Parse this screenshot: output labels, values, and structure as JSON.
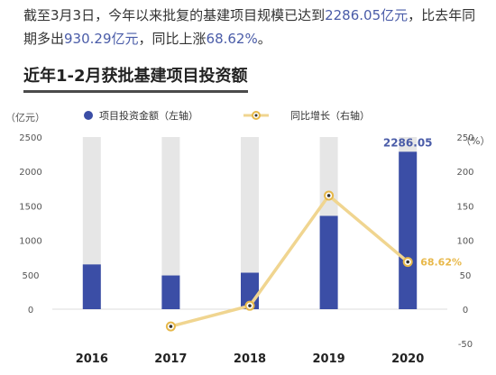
{
  "intro": {
    "part1": "截至3月3日，今年以来批复的基建项目规模已达到",
    "amount": "2286.05亿元",
    "part2": "，比去年同期多出",
    "increase": "930.29亿元",
    "part3": "，同比上涨",
    "pct": "68.62%",
    "part4": "。"
  },
  "heading": "近年1-2月获批基建项目投资额",
  "colors": {
    "bar": "#3b4ea6",
    "bar_bg": "#e6e6e6",
    "line": "#f0d590",
    "marker_ring": "#e6b84a",
    "highlight_text": "#4a5ca8",
    "line_label": "#e8b84a"
  },
  "chart_data": {
    "type": "bar",
    "categories": [
      "2016",
      "2017",
      "2018",
      "2019",
      "2020"
    ],
    "left_unit": "（亿元）",
    "right_unit": "（%）",
    "series": [
      {
        "name": "项目投资金额（左轴）",
        "type": "bar",
        "axis": "left",
        "values": [
          650,
          490,
          530,
          1355,
          2286.05
        ],
        "background_max": 2500
      },
      {
        "name": "同比增长（右轴）",
        "type": "line",
        "axis": "right",
        "values": [
          null,
          -25,
          5,
          165,
          68.62
        ]
      }
    ],
    "left_axis": {
      "min": 0,
      "max": 2500,
      "ticks": [
        "2500",
        "2000",
        "1500",
        "1000",
        "500",
        "0"
      ]
    },
    "right_axis": {
      "min": -50,
      "max": 250,
      "ticks": [
        "250",
        "200",
        "150",
        "100",
        "50",
        "0",
        "-50"
      ]
    },
    "annotations": {
      "last_bar": "2286.05",
      "last_point": "68.62%"
    },
    "legend_position": "top"
  }
}
